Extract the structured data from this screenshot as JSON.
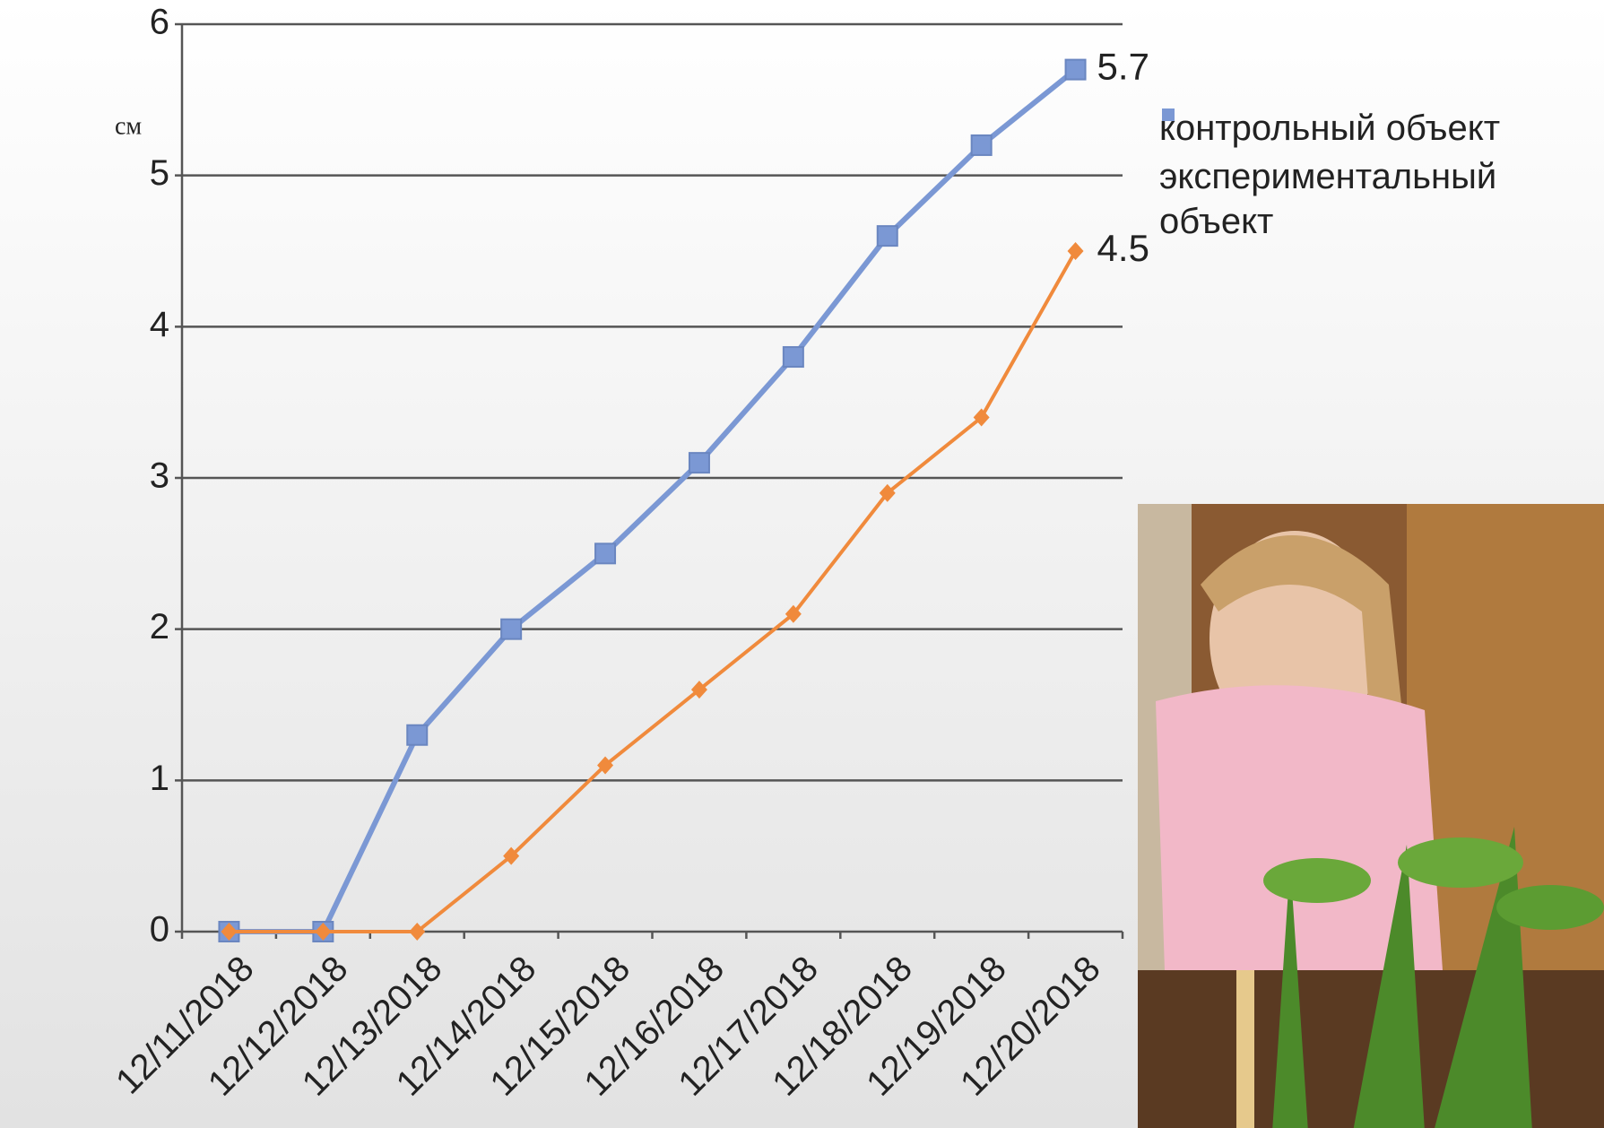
{
  "chart_data": {
    "type": "line",
    "y_label": "см",
    "categories": [
      "12/11/2018",
      "12/12/2018",
      "12/13/2018",
      "12/14/2018",
      "12/15/2018",
      "12/16/2018",
      "12/17/2018",
      "12/18/2018",
      "12/19/2018",
      "12/20/2018"
    ],
    "series": [
      {
        "name": "контрольный объект",
        "color": "#f08a3c",
        "marker": "diamond",
        "values": [
          0,
          0,
          0,
          0.5,
          1.1,
          1.6,
          2.1,
          2.9,
          3.4,
          4.5
        ]
      },
      {
        "name": "экспериментальный объект",
        "color": "#7b98d4",
        "marker": "square",
        "values": [
          0,
          0,
          1.3,
          2.0,
          2.5,
          3.1,
          3.8,
          4.6,
          5.2,
          5.7
        ]
      }
    ],
    "ylim": [
      0,
      6
    ],
    "yticks": [
      0,
      1,
      2,
      3,
      4,
      5,
      6
    ],
    "grid": true,
    "legend": "right"
  }
}
